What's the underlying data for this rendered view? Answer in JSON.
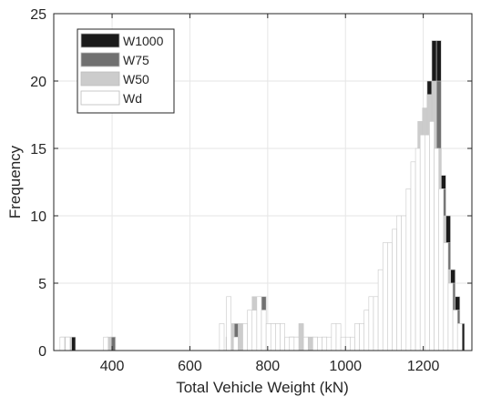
{
  "chart_data": {
    "type": "bar",
    "subtype": "overlaid-histogram",
    "title": "",
    "xlabel": "Total Vehicle Weight (kN)",
    "ylabel": "Frequency",
    "xlim": [
      250,
      1325
    ],
    "ylim": [
      0,
      25
    ],
    "xticks": [
      400,
      600,
      800,
      1000,
      1200
    ],
    "yticks": [
      0,
      5,
      10,
      15,
      20,
      25
    ],
    "grid": true,
    "legend_position": "top-left",
    "bin_width": 12,
    "series": [
      {
        "name": "W1000",
        "color": "#1a1a1a",
        "bins": [
          [
            273,
            1
          ],
          [
            300,
            1
          ],
          [
            403,
            1
          ],
          [
            730,
            1
          ],
          [
            778,
            3
          ],
          [
            790,
            4
          ],
          [
            814,
            2
          ],
          [
            826,
            2
          ],
          [
            838,
            1
          ],
          [
            862,
            1
          ],
          [
            886,
            1
          ],
          [
            910,
            1
          ],
          [
            1120,
            2
          ],
          [
            1168,
            4
          ],
          [
            1180,
            9
          ],
          [
            1192,
            12
          ],
          [
            1204,
            16
          ],
          [
            1216,
            20
          ],
          [
            1228,
            23
          ],
          [
            1240,
            23
          ],
          [
            1252,
            13
          ],
          [
            1264,
            10
          ],
          [
            1276,
            6
          ],
          [
            1288,
            4
          ],
          [
            1300,
            2
          ]
        ]
      },
      {
        "name": "W75",
        "color": "#707070",
        "bins": [
          [
            285,
            1
          ],
          [
            402,
            1
          ],
          [
            700,
            1
          ],
          [
            720,
            2
          ],
          [
            778,
            3
          ],
          [
            790,
            4
          ],
          [
            814,
            2
          ],
          [
            826,
            2
          ],
          [
            838,
            1
          ],
          [
            862,
            1
          ],
          [
            874,
            1
          ],
          [
            898,
            1
          ],
          [
            922,
            1
          ],
          [
            1096,
            2
          ],
          [
            1144,
            4
          ],
          [
            1180,
            9
          ],
          [
            1192,
            11
          ],
          [
            1204,
            15
          ],
          [
            1216,
            19
          ],
          [
            1228,
            19
          ],
          [
            1240,
            20
          ],
          [
            1252,
            12
          ],
          [
            1264,
            8
          ],
          [
            1276,
            5
          ],
          [
            1288,
            3
          ]
        ]
      },
      {
        "name": "W50",
        "color": "#cccccc",
        "bins": [
          [
            276,
            1
          ],
          [
            290,
            1
          ],
          [
            392,
            1
          ],
          [
            699,
            1
          ],
          [
            708,
            2
          ],
          [
            730,
            2
          ],
          [
            756,
            2
          ],
          [
            766,
            4
          ],
          [
            790,
            3
          ],
          [
            802,
            2
          ],
          [
            838,
            1
          ],
          [
            862,
            1
          ],
          [
            886,
            2
          ],
          [
            910,
            1
          ],
          [
            946,
            1
          ],
          [
            970,
            1
          ],
          [
            1072,
            2
          ],
          [
            1096,
            3
          ],
          [
            1120,
            5
          ],
          [
            1144,
            8
          ],
          [
            1168,
            10
          ],
          [
            1180,
            12
          ],
          [
            1192,
            17
          ],
          [
            1204,
            18
          ],
          [
            1216,
            19
          ],
          [
            1228,
            20
          ],
          [
            1240,
            15
          ],
          [
            1252,
            10
          ],
          [
            1264,
            6
          ],
          [
            1276,
            3
          ],
          [
            1288,
            1
          ]
        ]
      },
      {
        "name": "Wd",
        "color": "#ffffff",
        "bins": [
          [
            272,
            1
          ],
          [
            286,
            1
          ],
          [
            384,
            1
          ],
          [
            682,
            2
          ],
          [
            700,
            4
          ],
          [
            718,
            1
          ],
          [
            742,
            2
          ],
          [
            754,
            3
          ],
          [
            766,
            3
          ],
          [
            778,
            4
          ],
          [
            790,
            3
          ],
          [
            802,
            2
          ],
          [
            814,
            2
          ],
          [
            826,
            2
          ],
          [
            838,
            2
          ],
          [
            850,
            1
          ],
          [
            862,
            1
          ],
          [
            874,
            1
          ],
          [
            898,
            1
          ],
          [
            922,
            1
          ],
          [
            934,
            1
          ],
          [
            946,
            1
          ],
          [
            958,
            1
          ],
          [
            970,
            2
          ],
          [
            982,
            2
          ],
          [
            994,
            1
          ],
          [
            1006,
            1
          ],
          [
            1018,
            1
          ],
          [
            1030,
            2
          ],
          [
            1042,
            2
          ],
          [
            1054,
            3
          ],
          [
            1066,
            4
          ],
          [
            1078,
            4
          ],
          [
            1090,
            6
          ],
          [
            1102,
            8
          ],
          [
            1114,
            8
          ],
          [
            1126,
            9
          ],
          [
            1138,
            10
          ],
          [
            1150,
            10
          ],
          [
            1162,
            12
          ],
          [
            1174,
            14
          ],
          [
            1186,
            15
          ],
          [
            1198,
            16
          ],
          [
            1210,
            16
          ],
          [
            1222,
            17
          ],
          [
            1234,
            15
          ],
          [
            1246,
            12
          ],
          [
            1258,
            8
          ],
          [
            1270,
            5
          ],
          [
            1282,
            3
          ],
          [
            1294,
            2
          ]
        ]
      }
    ]
  }
}
